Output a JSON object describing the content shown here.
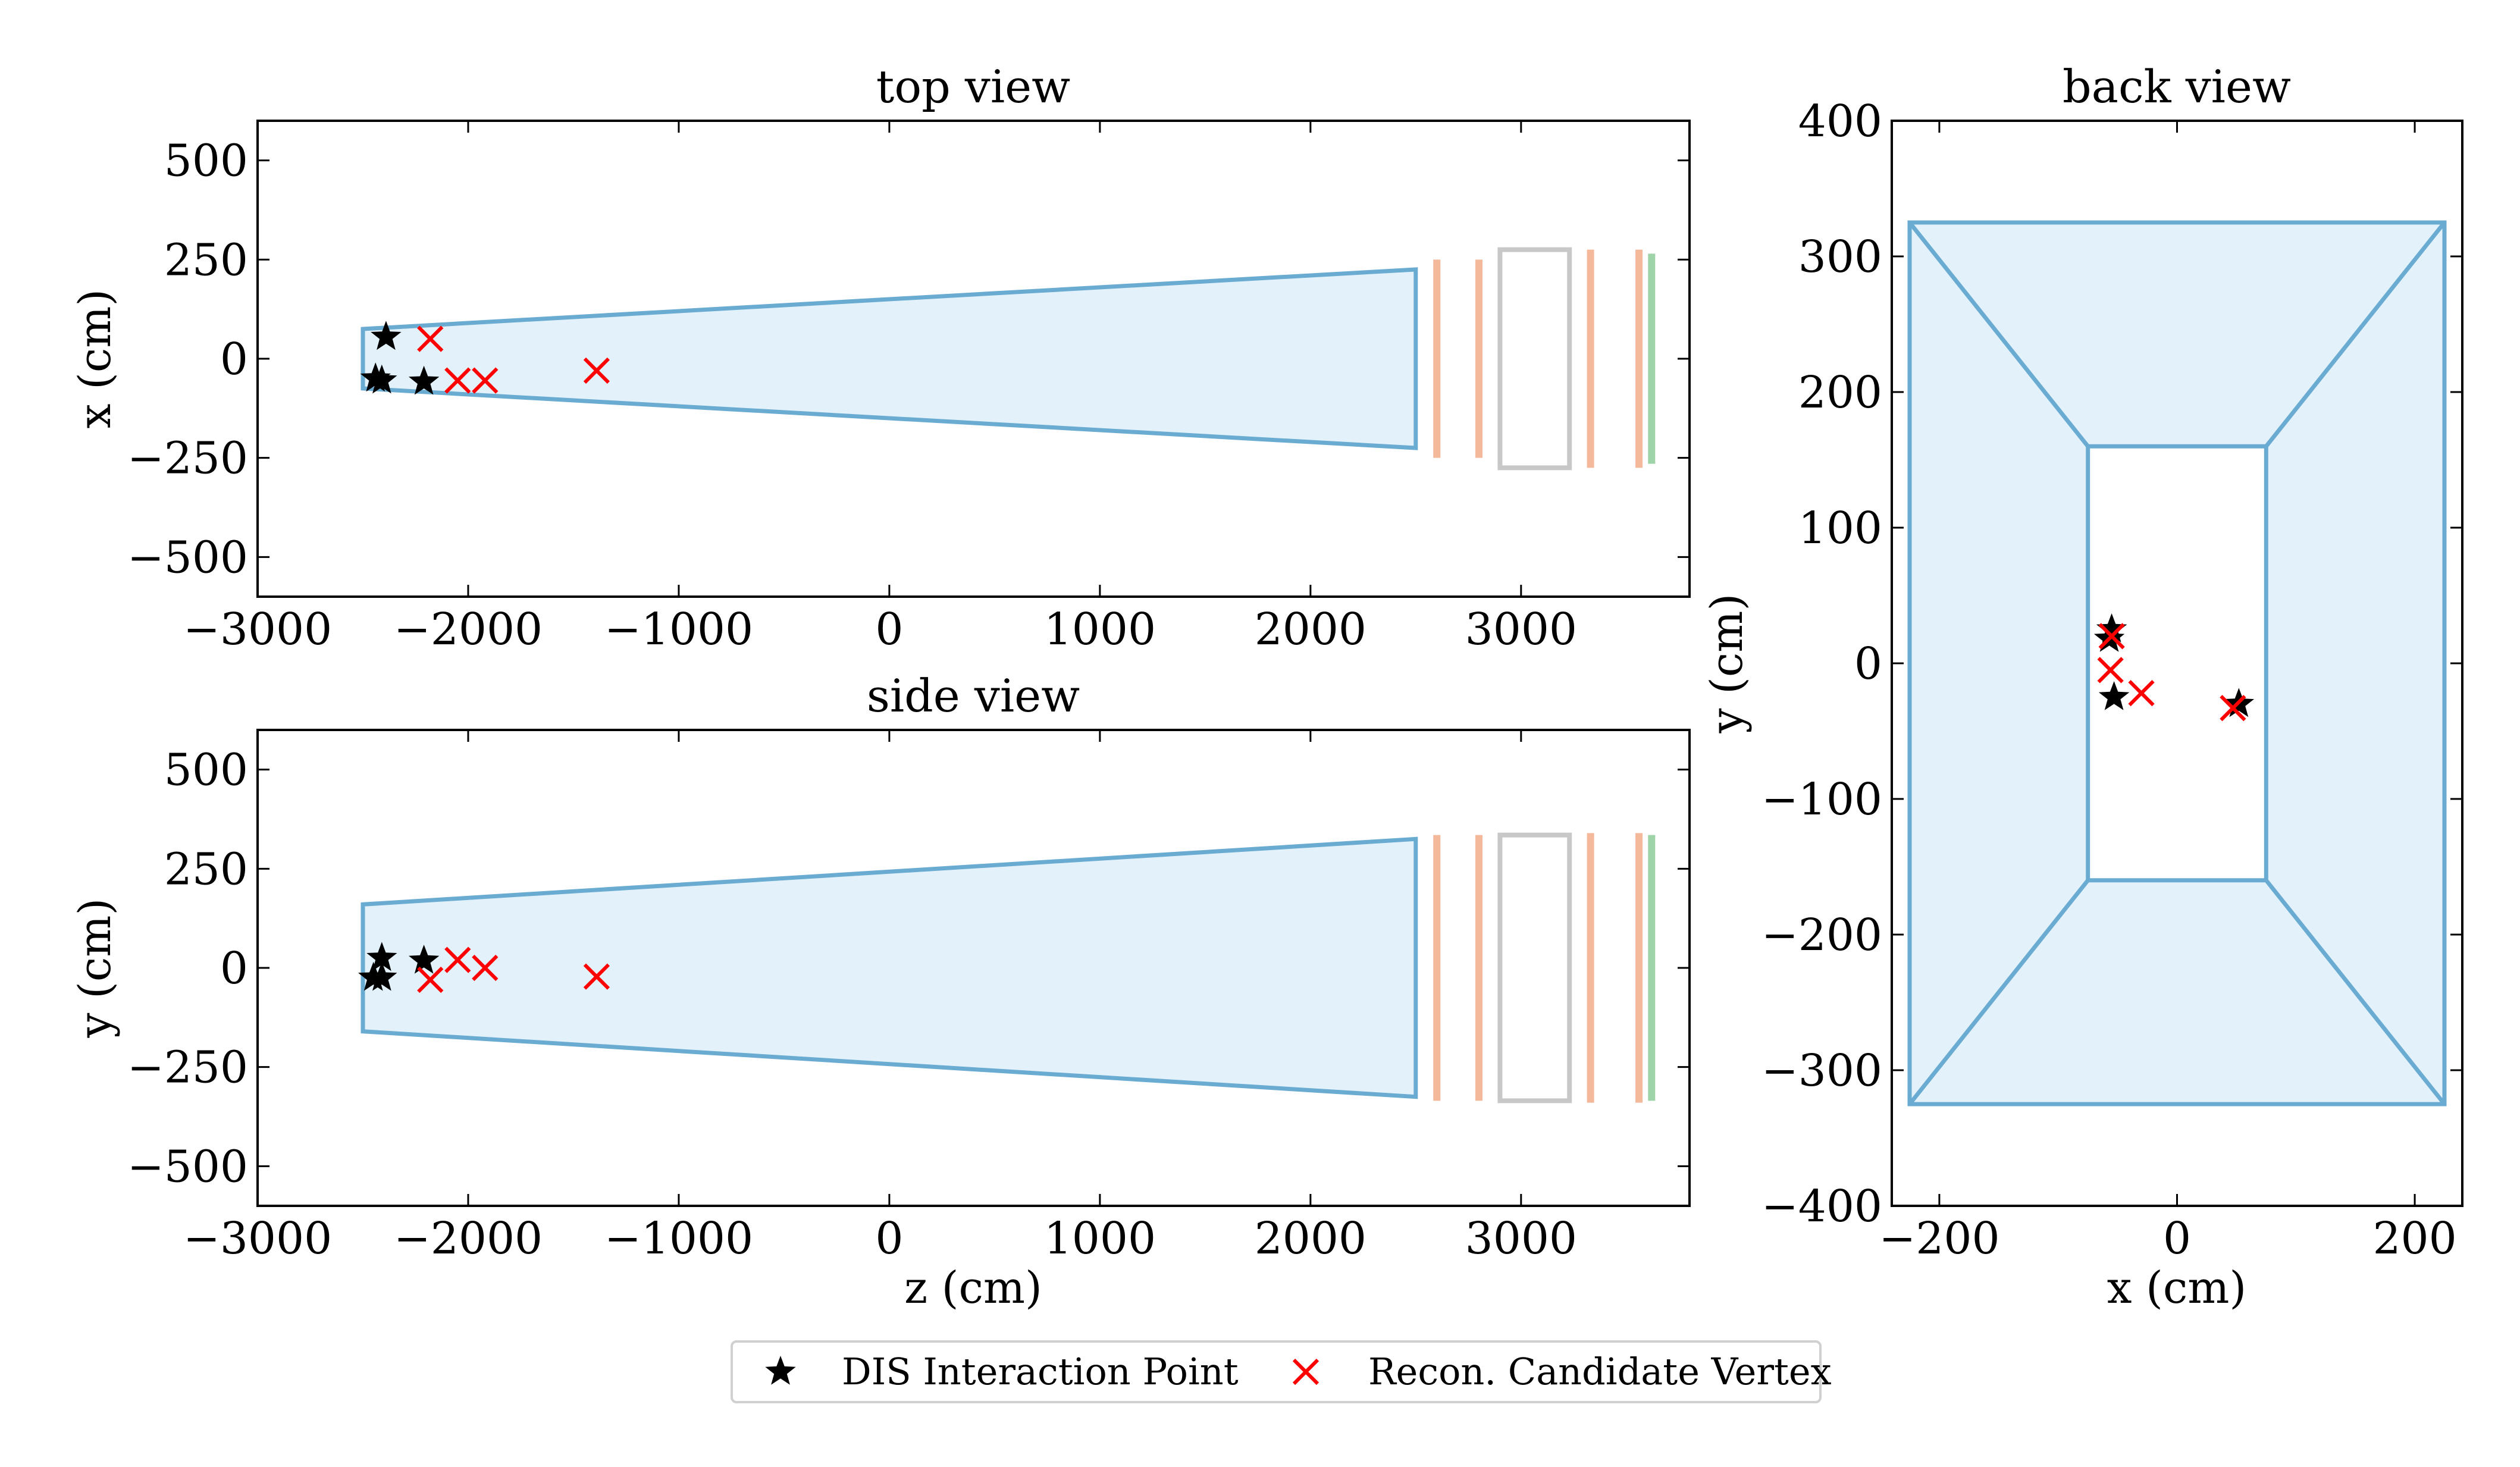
{
  "chart_data": [
    {
      "id": "top",
      "type": "scatter",
      "title": "top view",
      "xlabel": "",
      "ylabel": "x (cm)",
      "xlim": [
        -3000,
        3800
      ],
      "ylim": [
        -600,
        600
      ],
      "xticks": [
        -3000,
        -2000,
        -1000,
        0,
        1000,
        2000,
        3000
      ],
      "xtick_labels": [
        "−3000",
        "−2000",
        "−1000",
        "0",
        "1000",
        "2000",
        "3000"
      ],
      "yticks": [
        500,
        250,
        0,
        -250,
        -500
      ],
      "ytick_labels": [
        "500",
        "250",
        "0",
        "−250",
        "−500"
      ],
      "vessel": [
        [
          -2500,
          75
        ],
        [
          2500,
          225
        ],
        [
          2500,
          -225
        ],
        [
          -2500,
          -75
        ]
      ],
      "detectors": [
        {
          "kind": "orange",
          "z": 2600,
          "half": 250
        },
        {
          "kind": "orange",
          "z": 2800,
          "half": 250
        },
        {
          "kind": "gray-box",
          "z0": 2900,
          "z1": 3230,
          "half": 275
        },
        {
          "kind": "orange",
          "z": 3330,
          "half": 275
        },
        {
          "kind": "orange",
          "z": 3560,
          "half": 275
        },
        {
          "kind": "green",
          "z": 3620,
          "half": 265
        }
      ],
      "series": [
        {
          "name": "DIS Interaction Point",
          "marker": "star",
          "color": "#000000",
          "x": [
            -2390,
            -2440,
            -2410,
            -2210
          ],
          "y": [
            55,
            -50,
            -55,
            -58
          ]
        },
        {
          "name": "Recon. Candidate Vertex",
          "marker": "x",
          "color": "#ff0000",
          "x": [
            -2180,
            -2050,
            -1920,
            -1390
          ],
          "y": [
            50,
            -55,
            -55,
            -30
          ]
        }
      ]
    },
    {
      "id": "side",
      "type": "scatter",
      "title": "side view",
      "xlabel": "z (cm)",
      "ylabel": "y (cm)",
      "xlim": [
        -3000,
        3800
      ],
      "ylim": [
        -600,
        600
      ],
      "xticks": [
        -3000,
        -2000,
        -1000,
        0,
        1000,
        2000,
        3000
      ],
      "xtick_labels": [
        "−3000",
        "−2000",
        "−1000",
        "0",
        "1000",
        "2000",
        "3000"
      ],
      "yticks": [
        500,
        250,
        0,
        -250,
        -500
      ],
      "ytick_labels": [
        "500",
        "250",
        "0",
        "−250",
        "−500"
      ],
      "vessel": [
        [
          -2500,
          160
        ],
        [
          2500,
          325
        ],
        [
          2500,
          -325
        ],
        [
          -2500,
          -160
        ]
      ],
      "detectors": [
        {
          "kind": "orange",
          "z": 2600,
          "half": 335
        },
        {
          "kind": "orange",
          "z": 2800,
          "half": 335
        },
        {
          "kind": "gray-box",
          "z0": 2900,
          "z1": 3230,
          "half": 335
        },
        {
          "kind": "orange",
          "z": 3330,
          "half": 340
        },
        {
          "kind": "orange",
          "z": 3560,
          "half": 340
        },
        {
          "kind": "green",
          "z": 3620,
          "half": 335
        }
      ],
      "series": [
        {
          "name": "DIS Interaction Point",
          "marker": "star",
          "color": "#000000",
          "x": [
            -2410,
            -2450,
            -2410,
            -2210
          ],
          "y": [
            25,
            -25,
            -25,
            18
          ]
        },
        {
          "name": "Recon. Candidate Vertex",
          "marker": "x",
          "color": "#ff0000",
          "x": [
            -2180,
            -2050,
            -1920,
            -1390
          ],
          "y": [
            -30,
            20,
            0,
            -22
          ]
        }
      ]
    },
    {
      "id": "back",
      "type": "scatter",
      "title": "back view",
      "xlabel": "x (cm)",
      "ylabel": "y (cm)",
      "xlim": [
        -240,
        240
      ],
      "ylim": [
        -400,
        400
      ],
      "xticks": [
        -200,
        0,
        200
      ],
      "xtick_labels": [
        "−200",
        "0",
        "200"
      ],
      "yticks": [
        400,
        300,
        200,
        100,
        0,
        -100,
        -200,
        -300,
        -400
      ],
      "ytick_labels": [
        "400",
        "300",
        "200",
        "100",
        "0",
        "−100",
        "−200",
        "−300",
        "−400"
      ],
      "outer": {
        "x": 225,
        "y": 325
      },
      "inner": {
        "x": 75,
        "y": 160
      },
      "series": [
        {
          "name": "DIS Interaction Point",
          "marker": "star",
          "color": "#000000",
          "x": [
            -55,
            -57,
            -53,
            52
          ],
          "y": [
            25,
            18,
            -25,
            -30
          ]
        },
        {
          "name": "Recon. Candidate Vertex",
          "marker": "x",
          "color": "#ff0000",
          "x": [
            -55,
            -56,
            -30,
            47
          ],
          "y": [
            20,
            -5,
            -22,
            -33
          ]
        }
      ]
    }
  ],
  "legend": {
    "placement": "bottom-center",
    "entries": [
      {
        "label": "DIS Interaction Point",
        "marker": "star",
        "color": "#000000"
      },
      {
        "label": "Recon. Candidate Vertex",
        "marker": "x",
        "color": "#ff0000"
      }
    ]
  },
  "colors": {
    "vessel_edge": "#6aabd2",
    "vessel_fill": "#e3f1fa",
    "orange_station": "#f4b89a",
    "gray_box": "#c8c8c8",
    "green_station": "#9fd3a8"
  }
}
